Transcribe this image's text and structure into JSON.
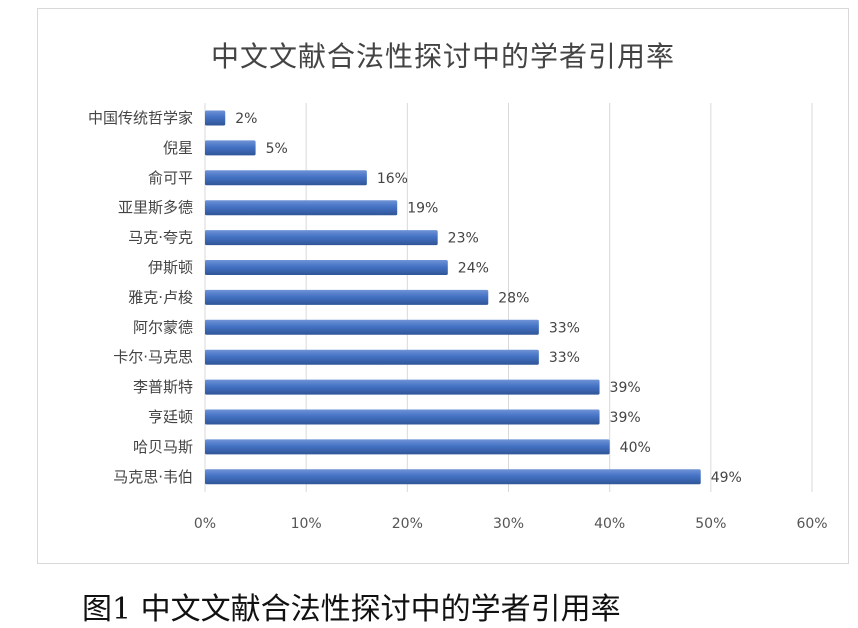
{
  "chart_data": {
    "type": "bar",
    "orientation": "horizontal",
    "title": "中文文献合法性探讨中的学者引用率",
    "categories": [
      "中国传统哲学家",
      "倪星",
      "俞可平",
      "亚里斯多德",
      "马克·夸克",
      "伊斯顿",
      "雅克·卢梭",
      "阿尔蒙德",
      "卡尔·马克思",
      "李普斯特",
      "亨廷顿",
      "哈贝马斯",
      "马克思·韦伯"
    ],
    "values": [
      2,
      5,
      16,
      19,
      23,
      24,
      28,
      33,
      33,
      39,
      39,
      40,
      49
    ],
    "value_labels": [
      "2%",
      "5%",
      "16%",
      "19%",
      "23%",
      "24%",
      "28%",
      "33%",
      "33%",
      "39%",
      "39%",
      "40%",
      "49%"
    ],
    "xlim": [
      0,
      60
    ],
    "x_ticks": [
      "0%",
      "10%",
      "20%",
      "30%",
      "40%",
      "50%",
      "60%"
    ],
    "grid": true,
    "bar_color": "#4472c4"
  },
  "caption": "图1 中文文献合法性探讨中的学者引用率"
}
